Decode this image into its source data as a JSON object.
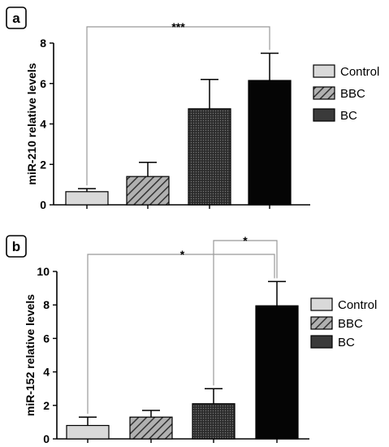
{
  "chart_data": [
    {
      "type": "bar",
      "panel_label": "a",
      "categories": [
        "Control",
        "BBC",
        "BC"
      ],
      "series": [
        {
          "name": "Control",
          "value": 0.65,
          "error": 0.15
        },
        {
          "name": "BBC",
          "value": 1.4,
          "error": 0.7
        },
        {
          "name": "BBC",
          "value": 4.75,
          "error": 1.45
        },
        {
          "name": "BC",
          "value": 6.15,
          "error": 1.35
        }
      ],
      "bar_patterns": [
        "light",
        "hatch",
        "dots",
        "solid"
      ],
      "ylabel": "miR-210 relative levels",
      "ylim": [
        0,
        8
      ],
      "yticks": [
        "0",
        "2",
        "4",
        "6",
        "8"
      ],
      "significance": [
        {
          "from_bar": 0,
          "to_bar": 3,
          "label": "***"
        }
      ],
      "legend": [
        {
          "label": "Control",
          "pattern": "light"
        },
        {
          "label": "BBC",
          "pattern": "hatch"
        },
        {
          "label": "BC",
          "pattern": "solid"
        }
      ]
    },
    {
      "type": "bar",
      "panel_label": "b",
      "categories": [
        "Control",
        "BBC",
        "BC"
      ],
      "series": [
        {
          "name": "Control",
          "value": 0.8,
          "error": 0.5
        },
        {
          "name": "BBC",
          "value": 1.3,
          "error": 0.4
        },
        {
          "name": "BBC",
          "value": 2.1,
          "error": 0.9
        },
        {
          "name": "BC",
          "value": 7.95,
          "error": 1.45
        }
      ],
      "bar_patterns": [
        "light",
        "hatch",
        "dots",
        "solid"
      ],
      "ylabel": "miR-152 relative levels",
      "ylim": [
        0,
        10
      ],
      "yticks": [
        "0",
        "2",
        "4",
        "6",
        "8",
        "10"
      ],
      "significance": [
        {
          "from_bar": 0,
          "to_bar": 3,
          "label": "*"
        },
        {
          "from_bar": 2,
          "to_bar": 3,
          "label": "*"
        }
      ],
      "legend": [
        {
          "label": "Control",
          "pattern": "light"
        },
        {
          "label": "BBC",
          "pattern": "hatch"
        },
        {
          "label": "BC",
          "pattern": "solid"
        }
      ]
    }
  ],
  "colors": {
    "light": "#d9d9d9",
    "hatch": "#9a9a9a",
    "dots": "#3a3a3a",
    "solid": "#050505",
    "legend_solid": "#3a3a3a",
    "axis": "#000000",
    "bracket": "#999999"
  }
}
